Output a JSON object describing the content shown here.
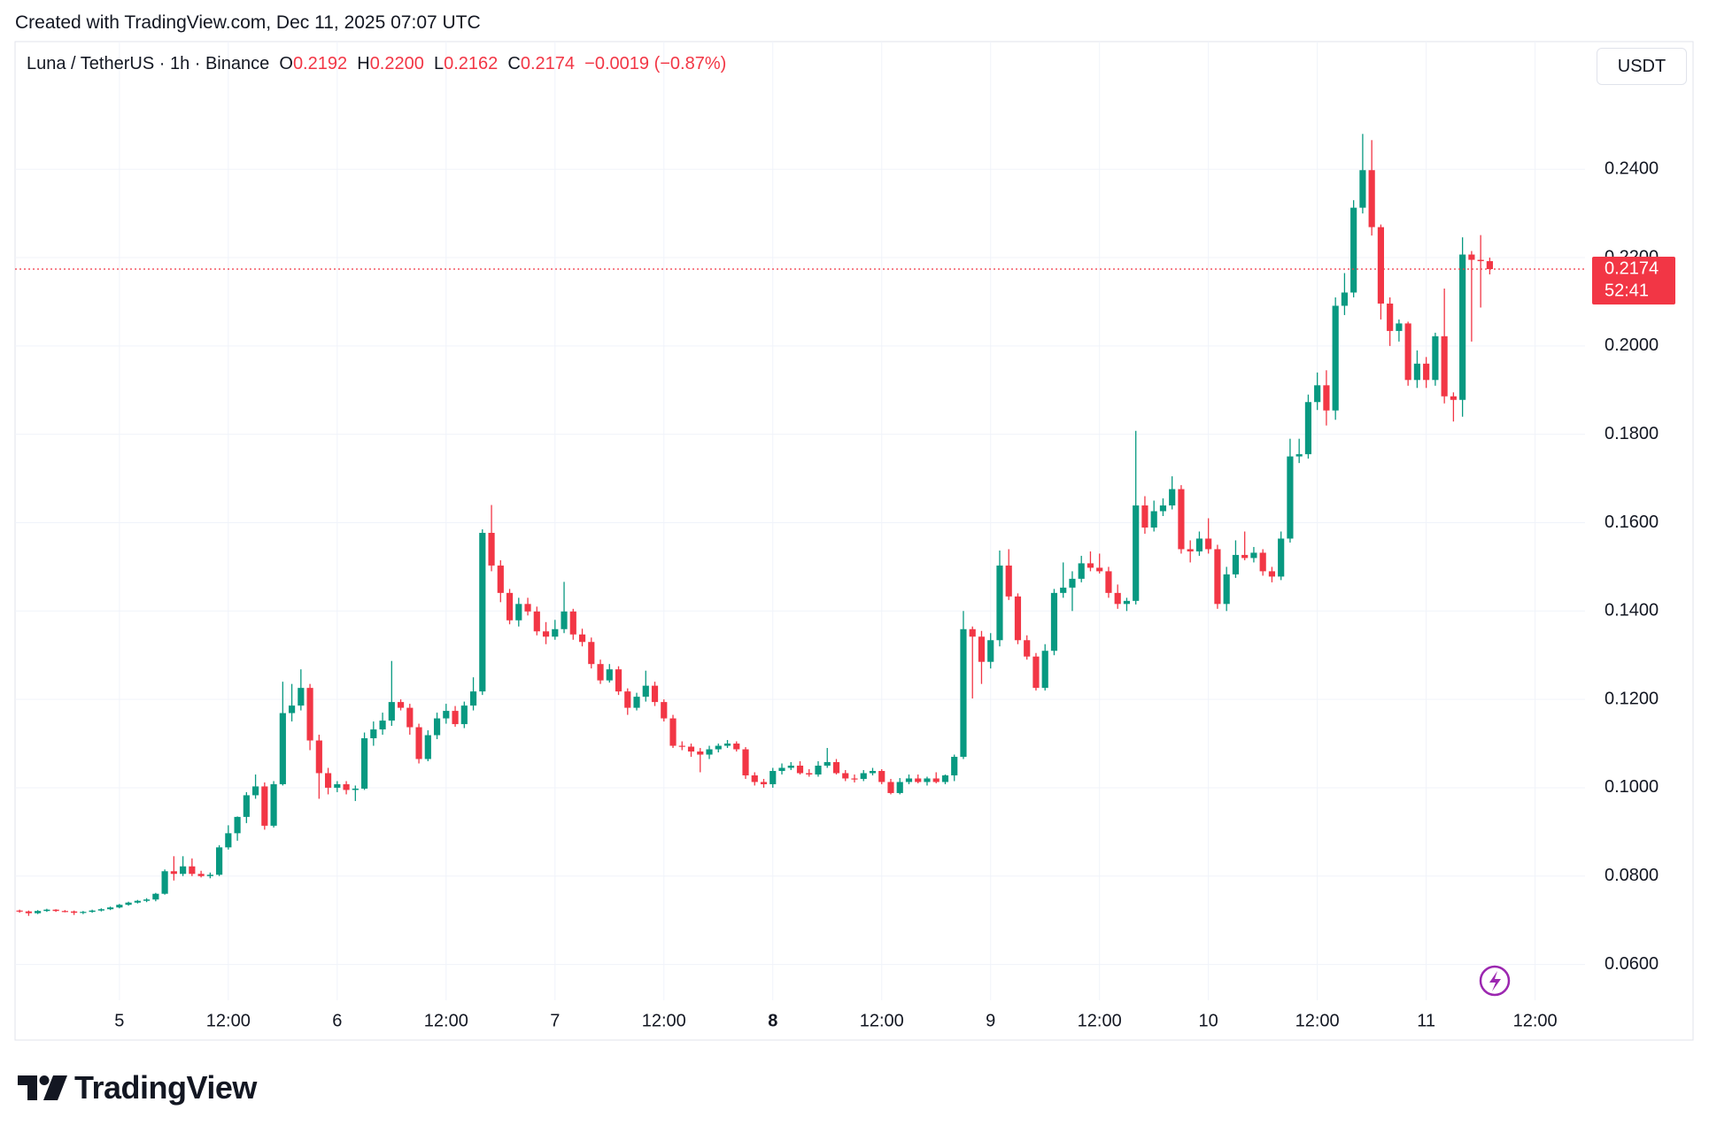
{
  "chart_data": {
    "type": "candlestick",
    "caption": "Created with TradingView.com, Dec 11, 2025 07:07 UTC",
    "header": {
      "symbol": "Luna / TetherUS · 1h · Binance",
      "open_label": "O",
      "open": "0.2192",
      "high_label": "H",
      "high": "0.2200",
      "low_label": "L",
      "low": "0.2162",
      "close_label": "C",
      "close": "0.2174",
      "change": "−0.0019 (−0.87%)"
    },
    "currency": "USDT",
    "price_tag": {
      "price": "0.2174",
      "countdown": "52:41"
    },
    "logo_text": "TradingView",
    "up_color": "#089981",
    "down_color": "#f23645",
    "grid": true,
    "xlim": [
      -0.5,
      172.5
    ],
    "ylim": [
      0.0519,
      0.2689
    ],
    "yticks": [
      {
        "value": 0.06,
        "label": "0.0600"
      },
      {
        "value": 0.08,
        "label": "0.0800"
      },
      {
        "value": 0.1,
        "label": "0.1000"
      },
      {
        "value": 0.12,
        "label": "0.1200"
      },
      {
        "value": 0.14,
        "label": "0.1400"
      },
      {
        "value": 0.16,
        "label": "0.1600"
      },
      {
        "value": 0.18,
        "label": "0.1800"
      },
      {
        "value": 0.2,
        "label": "0.2000"
      },
      {
        "value": 0.22,
        "label": "0.2200"
      },
      {
        "value": 0.24,
        "label": "0.2400"
      }
    ],
    "xticks": [
      {
        "value": 11,
        "label": "5"
      },
      {
        "value": 23,
        "label": "12:00"
      },
      {
        "value": 35,
        "label": "6"
      },
      {
        "value": 47,
        "label": "12:00"
      },
      {
        "value": 59,
        "label": "7"
      },
      {
        "value": 71,
        "label": "12:00"
      },
      {
        "value": 83,
        "label": "8",
        "bold": true
      },
      {
        "value": 95,
        "label": "12:00"
      },
      {
        "value": 107,
        "label": "9"
      },
      {
        "value": 119,
        "label": "12:00"
      },
      {
        "value": 131,
        "label": "10"
      },
      {
        "value": 143,
        "label": "12:00"
      },
      {
        "value": 155,
        "label": "11"
      },
      {
        "value": 167,
        "label": "12:00"
      }
    ],
    "ohlc": [
      [
        0.0722,
        0.0724,
        0.0717,
        0.072
      ],
      [
        0.072,
        0.0722,
        0.071,
        0.0716
      ],
      [
        0.0716,
        0.0723,
        0.0714,
        0.0721
      ],
      [
        0.0721,
        0.0726,
        0.0719,
        0.0724
      ],
      [
        0.0724,
        0.0725,
        0.0719,
        0.0721
      ],
      [
        0.0721,
        0.0723,
        0.0718,
        0.072
      ],
      [
        0.072,
        0.0722,
        0.0712,
        0.0717
      ],
      [
        0.0717,
        0.0721,
        0.0714,
        0.0719
      ],
      [
        0.0719,
        0.0724,
        0.0717,
        0.0722
      ],
      [
        0.0722,
        0.0727,
        0.072,
        0.0725
      ],
      [
        0.0725,
        0.0731,
        0.0723,
        0.0729
      ],
      [
        0.0729,
        0.0737,
        0.0727,
        0.0735
      ],
      [
        0.0735,
        0.0742,
        0.0733,
        0.074
      ],
      [
        0.074,
        0.0746,
        0.0738,
        0.0744
      ],
      [
        0.0744,
        0.075,
        0.0741,
        0.0747
      ],
      [
        0.0747,
        0.0762,
        0.0743,
        0.076
      ],
      [
        0.076,
        0.0815,
        0.0758,
        0.0811
      ],
      [
        0.0811,
        0.0845,
        0.079,
        0.0805
      ],
      [
        0.0805,
        0.0845,
        0.08,
        0.0822
      ],
      [
        0.0822,
        0.084,
        0.08,
        0.0805
      ],
      [
        0.0805,
        0.0812,
        0.0797,
        0.08
      ],
      [
        0.08,
        0.0808,
        0.0795,
        0.0803
      ],
      [
        0.0803,
        0.087,
        0.08,
        0.0865
      ],
      [
        0.0865,
        0.0915,
        0.086,
        0.0897
      ],
      [
        0.0897,
        0.0935,
        0.088,
        0.0934
      ],
      [
        0.0934,
        0.099,
        0.092,
        0.0983
      ],
      [
        0.0983,
        0.103,
        0.0975,
        0.1003
      ],
      [
        0.1003,
        0.1012,
        0.0905,
        0.0914
      ],
      [
        0.0914,
        0.1015,
        0.091,
        0.1008
      ],
      [
        0.1008,
        0.124,
        0.1005,
        0.1169
      ],
      [
        0.1169,
        0.1235,
        0.115,
        0.1186
      ],
      [
        0.1186,
        0.1268,
        0.1175,
        0.1226
      ],
      [
        0.1226,
        0.1235,
        0.1085,
        0.1107
      ],
      [
        0.1107,
        0.112,
        0.0975,
        0.1033
      ],
      [
        0.1033,
        0.1045,
        0.0985,
        0.1
      ],
      [
        0.1,
        0.1015,
        0.099,
        0.1008
      ],
      [
        0.1008,
        0.1015,
        0.0985,
        0.0995
      ],
      [
        0.0995,
        0.1005,
        0.097,
        0.0998
      ],
      [
        0.0998,
        0.1125,
        0.0995,
        0.1112
      ],
      [
        0.1112,
        0.115,
        0.1095,
        0.1132
      ],
      [
        0.1132,
        0.117,
        0.112,
        0.1152
      ],
      [
        0.1152,
        0.1287,
        0.114,
        0.1194
      ],
      [
        0.1194,
        0.12,
        0.1175,
        0.1181
      ],
      [
        0.1181,
        0.119,
        0.112,
        0.1137
      ],
      [
        0.1137,
        0.1145,
        0.1055,
        0.1065
      ],
      [
        0.1065,
        0.113,
        0.106,
        0.1119
      ],
      [
        0.1119,
        0.117,
        0.111,
        0.1157
      ],
      [
        0.1157,
        0.119,
        0.1145,
        0.1174
      ],
      [
        0.1174,
        0.1185,
        0.1138,
        0.1144
      ],
      [
        0.1144,
        0.1195,
        0.1135,
        0.1186
      ],
      [
        0.1186,
        0.125,
        0.1175,
        0.1218
      ],
      [
        0.1218,
        0.1585,
        0.121,
        0.1577
      ],
      [
        0.1577,
        0.164,
        0.149,
        0.1503
      ],
      [
        0.1503,
        0.1515,
        0.142,
        0.1441
      ],
      [
        0.1441,
        0.145,
        0.137,
        0.1379
      ],
      [
        0.1379,
        0.143,
        0.1365,
        0.1416
      ],
      [
        0.1416,
        0.143,
        0.139,
        0.1399
      ],
      [
        0.1399,
        0.141,
        0.1345,
        0.1354
      ],
      [
        0.1354,
        0.1375,
        0.1325,
        0.1342
      ],
      [
        0.1342,
        0.138,
        0.1335,
        0.1359
      ],
      [
        0.1359,
        0.1466,
        0.135,
        0.1399
      ],
      [
        0.1399,
        0.1405,
        0.1335,
        0.1347
      ],
      [
        0.1347,
        0.136,
        0.132,
        0.133
      ],
      [
        0.133,
        0.134,
        0.127,
        0.128
      ],
      [
        0.128,
        0.129,
        0.1235,
        0.1243
      ],
      [
        0.1243,
        0.128,
        0.1238,
        0.1268
      ],
      [
        0.1268,
        0.1275,
        0.121,
        0.1218
      ],
      [
        0.1218,
        0.1225,
        0.1165,
        0.1181
      ],
      [
        0.1181,
        0.1215,
        0.1175,
        0.1206
      ],
      [
        0.1206,
        0.1265,
        0.1195,
        0.1231
      ],
      [
        0.1231,
        0.124,
        0.1185,
        0.1194
      ],
      [
        0.1194,
        0.12,
        0.115,
        0.1157
      ],
      [
        0.1157,
        0.1165,
        0.109,
        0.1095
      ],
      [
        0.1095,
        0.1105,
        0.1085,
        0.1093
      ],
      [
        0.1093,
        0.11,
        0.107,
        0.1082
      ],
      [
        0.1082,
        0.109,
        0.1035,
        0.1075
      ],
      [
        0.1075,
        0.1095,
        0.1065,
        0.1087
      ],
      [
        0.1087,
        0.11,
        0.108,
        0.1095
      ],
      [
        0.1095,
        0.1108,
        0.109,
        0.11
      ],
      [
        0.11,
        0.1105,
        0.1082,
        0.1087
      ],
      [
        0.1087,
        0.1092,
        0.102,
        0.1028
      ],
      [
        0.1028,
        0.1035,
        0.1005,
        0.1013
      ],
      [
        0.1013,
        0.102,
        0.1,
        0.1008
      ],
      [
        0.1008,
        0.1045,
        0.1,
        0.1038
      ],
      [
        0.1038,
        0.1055,
        0.103,
        0.1045
      ],
      [
        0.1045,
        0.1058,
        0.104,
        0.105
      ],
      [
        0.105,
        0.106,
        0.103,
        0.1033
      ],
      [
        0.1033,
        0.1042,
        0.1025,
        0.103
      ],
      [
        0.103,
        0.106,
        0.1025,
        0.105
      ],
      [
        0.105,
        0.109,
        0.1045,
        0.1058
      ],
      [
        0.1058,
        0.1065,
        0.103,
        0.1033
      ],
      [
        0.1033,
        0.104,
        0.1015,
        0.1021
      ],
      [
        0.1021,
        0.103,
        0.1012,
        0.102
      ],
      [
        0.102,
        0.104,
        0.1015,
        0.1033
      ],
      [
        0.1033,
        0.1045,
        0.1028,
        0.1038
      ],
      [
        0.1038,
        0.1042,
        0.1008,
        0.1013
      ],
      [
        0.1013,
        0.102,
        0.0985,
        0.0988
      ],
      [
        0.0988,
        0.1022,
        0.0985,
        0.1013
      ],
      [
        0.1013,
        0.103,
        0.1008,
        0.1021
      ],
      [
        0.1021,
        0.103,
        0.101,
        0.1013
      ],
      [
        0.1013,
        0.1025,
        0.1005,
        0.1021
      ],
      [
        0.1021,
        0.1035,
        0.101,
        0.1013
      ],
      [
        0.1013,
        0.103,
        0.1008,
        0.1028
      ],
      [
        0.1028,
        0.1075,
        0.1015,
        0.107
      ],
      [
        0.107,
        0.14,
        0.1065,
        0.1359
      ],
      [
        0.1359,
        0.1365,
        0.1202,
        0.1342
      ],
      [
        0.1342,
        0.1355,
        0.1235,
        0.1285
      ],
      [
        0.1285,
        0.135,
        0.127,
        0.1334
      ],
      [
        0.1334,
        0.1537,
        0.132,
        0.1503
      ],
      [
        0.1503,
        0.154,
        0.1425,
        0.1433
      ],
      [
        0.1433,
        0.144,
        0.1325,
        0.1334
      ],
      [
        0.1334,
        0.1345,
        0.129,
        0.1297
      ],
      [
        0.1297,
        0.1305,
        0.122,
        0.1226
      ],
      [
        0.1226,
        0.1325,
        0.122,
        0.131
      ],
      [
        0.131,
        0.145,
        0.13,
        0.1441
      ],
      [
        0.1441,
        0.151,
        0.143,
        0.1453
      ],
      [
        0.1453,
        0.149,
        0.14,
        0.1473
      ],
      [
        0.1473,
        0.1525,
        0.1465,
        0.1508
      ],
      [
        0.1508,
        0.1535,
        0.149,
        0.1498
      ],
      [
        0.1498,
        0.153,
        0.1485,
        0.149
      ],
      [
        0.149,
        0.15,
        0.143,
        0.1441
      ],
      [
        0.1441,
        0.146,
        0.1405,
        0.1416
      ],
      [
        0.1416,
        0.143,
        0.14,
        0.1423
      ],
      [
        0.1423,
        0.1808,
        0.1415,
        0.1639
      ],
      [
        0.1639,
        0.166,
        0.1575,
        0.1589
      ],
      [
        0.1589,
        0.165,
        0.158,
        0.1626
      ],
      [
        0.1626,
        0.1655,
        0.1615,
        0.1639
      ],
      [
        0.1639,
        0.1705,
        0.163,
        0.1676
      ],
      [
        0.1676,
        0.1685,
        0.153,
        0.154
      ],
      [
        0.154,
        0.156,
        0.151,
        0.1535
      ],
      [
        0.1535,
        0.158,
        0.1525,
        0.1564
      ],
      [
        0.1564,
        0.161,
        0.153,
        0.154
      ],
      [
        0.154,
        0.155,
        0.1405,
        0.1416
      ],
      [
        0.1416,
        0.15,
        0.14,
        0.1483
      ],
      [
        0.1483,
        0.156,
        0.1475,
        0.1527
      ],
      [
        0.1527,
        0.158,
        0.1515,
        0.152
      ],
      [
        0.152,
        0.1545,
        0.151,
        0.1532
      ],
      [
        0.1532,
        0.154,
        0.148,
        0.149
      ],
      [
        0.149,
        0.15,
        0.1465,
        0.1478
      ],
      [
        0.1478,
        0.158,
        0.147,
        0.1564
      ],
      [
        0.1564,
        0.179,
        0.1555,
        0.175
      ],
      [
        0.175,
        0.179,
        0.1735,
        0.1755
      ],
      [
        0.1755,
        0.189,
        0.1745,
        0.1873
      ],
      [
        0.1873,
        0.194,
        0.1855,
        0.1911
      ],
      [
        0.1911,
        0.1945,
        0.182,
        0.1854
      ],
      [
        0.1854,
        0.211,
        0.1833,
        0.2091
      ],
      [
        0.2091,
        0.2165,
        0.207,
        0.2121
      ],
      [
        0.2121,
        0.233,
        0.211,
        0.2313
      ],
      [
        0.2313,
        0.248,
        0.23,
        0.2398
      ],
      [
        0.2398,
        0.2466,
        0.225,
        0.2269
      ],
      [
        0.2269,
        0.2275,
        0.206,
        0.2096
      ],
      [
        0.2096,
        0.211,
        0.2,
        0.2034
      ],
      [
        0.2034,
        0.206,
        0.201,
        0.2051
      ],
      [
        0.2051,
        0.2055,
        0.191,
        0.1923
      ],
      [
        0.1923,
        0.199,
        0.1905,
        0.196
      ],
      [
        0.196,
        0.1975,
        0.1905,
        0.1923
      ],
      [
        0.1923,
        0.203,
        0.191,
        0.2022
      ],
      [
        0.2022,
        0.213,
        0.187,
        0.1886
      ],
      [
        0.1886,
        0.1895,
        0.1829,
        0.1878
      ],
      [
        0.1878,
        0.2246,
        0.184,
        0.2207
      ],
      [
        0.2207,
        0.2215,
        0.201,
        0.2195
      ],
      [
        0.2195,
        0.2251,
        0.2087,
        0.2192
      ],
      [
        0.2192,
        0.22,
        0.2162,
        0.2174
      ]
    ]
  }
}
